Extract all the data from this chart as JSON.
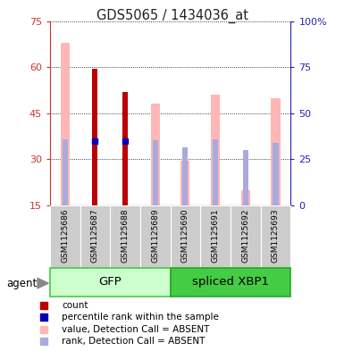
{
  "title": "GDS5065 / 1434036_at",
  "samples": [
    "GSM1125686",
    "GSM1125687",
    "GSM1125688",
    "GSM1125689",
    "GSM1125690",
    "GSM1125691",
    "GSM1125692",
    "GSM1125693"
  ],
  "count_values": [
    null,
    59.5,
    52.0,
    null,
    null,
    null,
    null,
    null
  ],
  "percentile_rank_values": [
    null,
    35.0,
    35.0,
    null,
    null,
    null,
    null,
    null
  ],
  "absent_value_values": [
    68.0,
    null,
    null,
    48.0,
    29.5,
    51.0,
    20.0,
    50.0
  ],
  "absent_rank_values": [
    36.0,
    null,
    null,
    35.5,
    31.5,
    36.0,
    30.0,
    34.0
  ],
  "ylim_left": [
    15,
    75
  ],
  "ylim_right": [
    0,
    100
  ],
  "yticks_left": [
    15,
    30,
    45,
    60,
    75
  ],
  "yticks_right": [
    0,
    25,
    50,
    75,
    100
  ],
  "left_axis_color": "#cc3333",
  "right_axis_color": "#2222bb",
  "count_color": "#bb0000",
  "percentile_color": "#0000bb",
  "absent_value_color": "#ffb6b6",
  "absent_rank_color": "#aaaadd",
  "grid_color": "#000000",
  "background_color": "#ffffff",
  "gfp_color_light": "#ccffcc",
  "gfp_color_dark": "#44cc44",
  "xbp1_color_light": "#44cc44",
  "xbp1_color_dark": "#22aa22",
  "legend_items": [
    [
      "#bb0000",
      "count"
    ],
    [
      "#0000bb",
      "percentile rank within the sample"
    ],
    [
      "#ffb6b6",
      "value, Detection Call = ABSENT"
    ],
    [
      "#aaaadd",
      "rank, Detection Call = ABSENT"
    ]
  ]
}
